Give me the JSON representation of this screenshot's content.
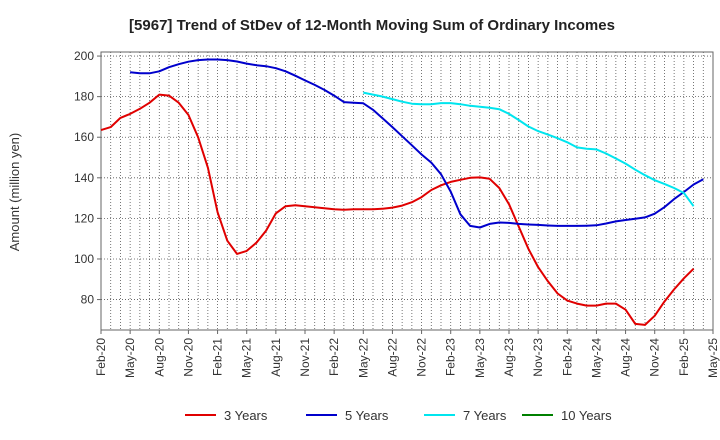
{
  "chart_data": {
    "type": "line",
    "title": "[5967]  Trend of StDev of 12-Month Moving Sum of Ordinary Incomes",
    "ylabel": "Amount (million yen)",
    "xlabel": "",
    "ylim": [
      65,
      202
    ],
    "yticks": [
      80,
      100,
      120,
      140,
      160,
      180,
      200
    ],
    "x_start": "2020-02",
    "x_end": "2025-05",
    "xtick_labels": [
      "Feb-20",
      "May-20",
      "Aug-20",
      "Nov-20",
      "Feb-21",
      "May-21",
      "Aug-21",
      "Nov-21",
      "Feb-22",
      "May-22",
      "Aug-22",
      "Nov-22",
      "Feb-23",
      "May-23",
      "Aug-23",
      "Nov-23",
      "Feb-24",
      "May-24",
      "Aug-24",
      "Nov-24",
      "Feb-25",
      "May-25"
    ],
    "grid": true,
    "legend_position": "bottom",
    "series": [
      {
        "name": "3 Years",
        "color": "#e00000",
        "start": "2020-02",
        "values": [
          163.5,
          165,
          169.5,
          171.5,
          174,
          177,
          181,
          180.5,
          177,
          171,
          160,
          145,
          123,
          109,
          102.5,
          104,
          108,
          114,
          122.5,
          126,
          126.5,
          126,
          125.5,
          125,
          124.5,
          124.3,
          124.5,
          124.5,
          124.5,
          124.8,
          125.3,
          126.3,
          128,
          130.5,
          134,
          136.3,
          138,
          139,
          140,
          140.2,
          139.5,
          135,
          127,
          116,
          105,
          96,
          89,
          83,
          79.5,
          78,
          77,
          77,
          78,
          78,
          75,
          68,
          67.5,
          72,
          79,
          85,
          90.5,
          95.2
        ]
      },
      {
        "name": "5 Years",
        "color": "#0000cc",
        "start": "2020-05",
        "values": [
          192,
          191.5,
          191.5,
          192.5,
          194.5,
          196,
          197.2,
          198,
          198.3,
          198.3,
          198,
          197.3,
          196.3,
          195.5,
          195,
          194,
          192.5,
          190.3,
          188,
          185.8,
          183.3,
          180.5,
          177.3,
          177,
          176.7,
          173.5,
          169.3,
          165,
          160.5,
          156,
          151.5,
          147.5,
          141.8,
          133.2,
          122,
          116.3,
          115.5,
          117.3,
          118,
          117.8,
          117.3,
          117,
          116.8,
          116.5,
          116.3,
          116.3,
          116.3,
          116.4,
          116.6,
          117.5,
          118.5,
          119.2,
          119.8,
          120.5,
          122.3,
          125.5,
          129.5,
          133,
          136.7,
          139.3
        ]
      },
      {
        "name": "7 Years",
        "color": "#00e5ee",
        "start": "2022-05",
        "values": [
          182,
          181,
          180,
          178.8,
          177.5,
          176.5,
          176.3,
          176.3,
          176.8,
          176.8,
          176.3,
          175.5,
          175,
          174.5,
          173.8,
          171.5,
          168.5,
          165.3,
          163,
          161.3,
          159.5,
          157.5,
          155,
          154.3,
          154,
          152,
          149.5,
          147,
          144,
          141.3,
          138.8,
          137,
          135,
          132.5,
          126
        ]
      },
      {
        "name": "10 Years",
        "color": "#008000",
        "start": "2020-02",
        "values": []
      }
    ]
  }
}
